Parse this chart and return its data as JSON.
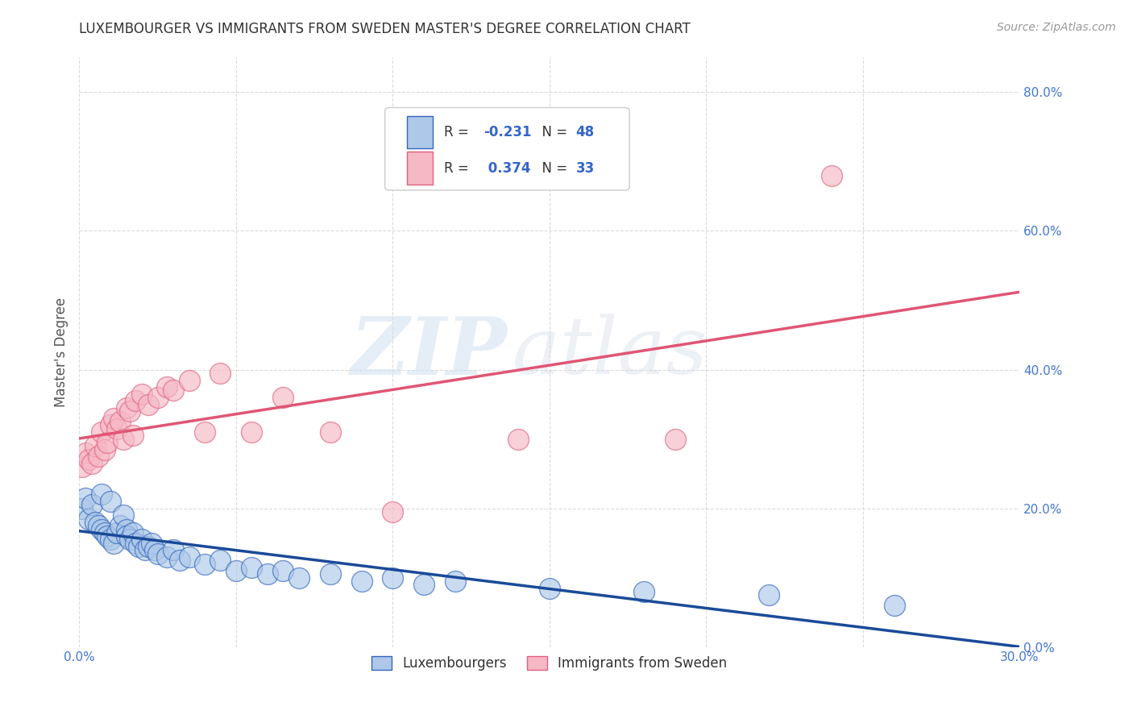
{
  "title": "LUXEMBOURGER VS IMMIGRANTS FROM SWEDEN MASTER'S DEGREE CORRELATION CHART",
  "source": "Source: ZipAtlas.com",
  "ylabel_label": "Master's Degree",
  "x_min": 0.0,
  "x_max": 0.3,
  "y_min": 0.0,
  "y_max": 0.85,
  "x_ticks": [
    0.0,
    0.05,
    0.1,
    0.15,
    0.2,
    0.25,
    0.3
  ],
  "x_tick_labels_show": [
    "0.0%",
    "",
    "",
    "",
    "",
    "",
    "30.0%"
  ],
  "y_ticks": [
    0.0,
    0.2,
    0.4,
    0.6,
    0.8
  ],
  "y_tick_labels": [
    "0.0%",
    "20.0%",
    "40.0%",
    "60.0%",
    "80.0%"
  ],
  "lux_R": -0.231,
  "lux_N": 48,
  "swe_R": 0.374,
  "swe_N": 33,
  "lux_color": "#adc8e8",
  "swe_color": "#f5b8c4",
  "lux_edge_color": "#3366bb",
  "swe_edge_color": "#e06080",
  "lux_line_color": "#1a4a99",
  "swe_line_color": "#e05575",
  "watermark_zip": "ZIP",
  "watermark_atlas": "atlas",
  "background_color": "#ffffff",
  "grid_color": "#cccccc",
  "title_color": "#333333",
  "axis_label_color": "#555555",
  "tick_color": "#4477cc",
  "legend_R_color": "#3366cc",
  "lux_x": [
    0.001,
    0.002,
    0.003,
    0.004,
    0.005,
    0.006,
    0.007,
    0.007,
    0.008,
    0.009,
    0.01,
    0.01,
    0.011,
    0.012,
    0.013,
    0.014,
    0.015,
    0.015,
    0.016,
    0.017,
    0.018,
    0.019,
    0.02,
    0.021,
    0.022,
    0.023,
    0.024,
    0.025,
    0.028,
    0.03,
    0.032,
    0.035,
    0.04,
    0.045,
    0.05,
    0.055,
    0.06,
    0.065,
    0.07,
    0.08,
    0.09,
    0.1,
    0.11,
    0.12,
    0.15,
    0.18,
    0.22,
    0.26
  ],
  "lux_y": [
    0.2,
    0.215,
    0.185,
    0.205,
    0.18,
    0.175,
    0.17,
    0.22,
    0.165,
    0.16,
    0.155,
    0.21,
    0.15,
    0.165,
    0.175,
    0.19,
    0.17,
    0.16,
    0.155,
    0.165,
    0.15,
    0.145,
    0.155,
    0.14,
    0.145,
    0.15,
    0.14,
    0.135,
    0.13,
    0.14,
    0.125,
    0.13,
    0.12,
    0.125,
    0.11,
    0.115,
    0.105,
    0.11,
    0.1,
    0.105,
    0.095,
    0.1,
    0.09,
    0.095,
    0.085,
    0.08,
    0.075,
    0.06
  ],
  "swe_x": [
    0.001,
    0.002,
    0.003,
    0.004,
    0.005,
    0.006,
    0.007,
    0.008,
    0.009,
    0.01,
    0.011,
    0.012,
    0.013,
    0.014,
    0.015,
    0.016,
    0.017,
    0.018,
    0.02,
    0.022,
    0.025,
    0.028,
    0.03,
    0.035,
    0.04,
    0.045,
    0.055,
    0.065,
    0.08,
    0.1,
    0.14,
    0.19,
    0.24
  ],
  "swe_y": [
    0.26,
    0.28,
    0.27,
    0.265,
    0.29,
    0.275,
    0.31,
    0.285,
    0.295,
    0.32,
    0.33,
    0.315,
    0.325,
    0.3,
    0.345,
    0.34,
    0.305,
    0.355,
    0.365,
    0.35,
    0.36,
    0.375,
    0.37,
    0.385,
    0.31,
    0.395,
    0.31,
    0.36,
    0.31,
    0.195,
    0.3,
    0.3,
    0.68
  ]
}
